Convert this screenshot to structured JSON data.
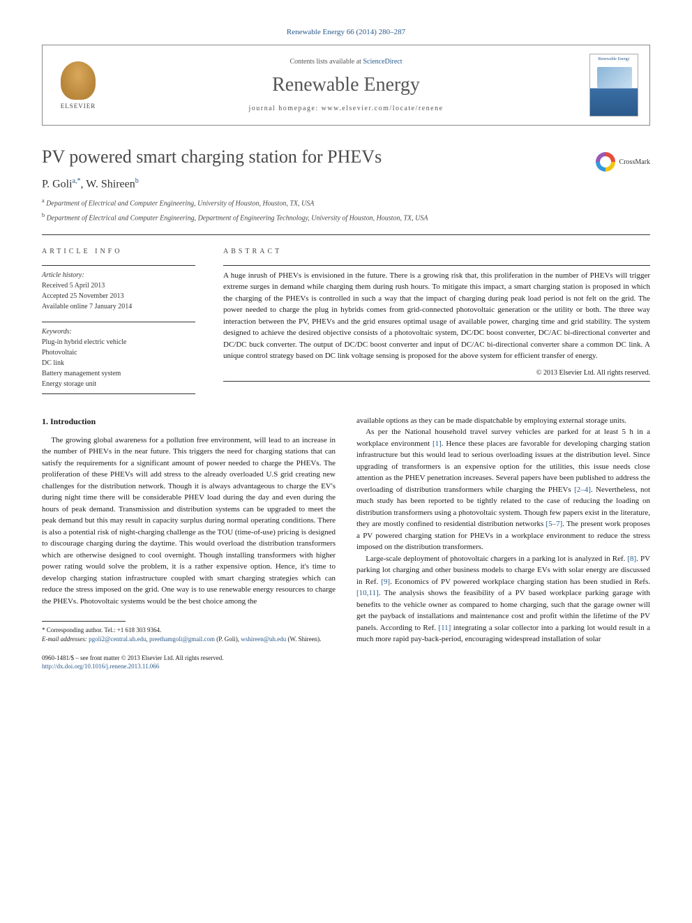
{
  "journal_ref": "Renewable Energy 66 (2014) 280–287",
  "header": {
    "contents_prefix": "Contents lists available at ",
    "contents_link": "ScienceDirect",
    "journal_title": "Renewable Energy",
    "homepage_prefix": "journal homepage: ",
    "homepage_url": "www.elsevier.com/locate/renene",
    "publisher": "ELSEVIER",
    "cover_label": "Renewable Energy"
  },
  "article": {
    "title": "PV powered smart charging station for PHEVs",
    "crossmark": "CrossMark",
    "authors_html": "P. Goli",
    "author1_sup": "a,*",
    "author2": ", W. Shireen",
    "author2_sup": "b",
    "affiliations": [
      {
        "sup": "a",
        "text": "Department of Electrical and Computer Engineering, University of Houston, Houston, TX, USA"
      },
      {
        "sup": "b",
        "text": "Department of Electrical and Computer Engineering, Department of Engineering Technology, University of Houston, Houston, TX, USA"
      }
    ]
  },
  "info": {
    "header": "ARTICLE INFO",
    "history_label": "Article history:",
    "received": "Received 5 April 2013",
    "accepted": "Accepted 25 November 2013",
    "online": "Available online 7 January 2014",
    "keywords_label": "Keywords:",
    "keywords": [
      "Plug-in hybrid electric vehicle",
      "Photovoltaic",
      "DC link",
      "Battery management system",
      "Energy storage unit"
    ]
  },
  "abstract": {
    "header": "ABSTRACT",
    "text": "A huge inrush of PHEVs is envisioned in the future. There is a growing risk that, this proliferation in the number of PHEVs will trigger extreme surges in demand while charging them during rush hours. To mitigate this impact, a smart charging station is proposed in which the charging of the PHEVs is controlled in such a way that the impact of charging during peak load period is not felt on the grid. The power needed to charge the plug in hybrids comes from grid-connected photovoltaic generation or the utility or both. The three way interaction between the PV, PHEVs and the grid ensures optimal usage of available power, charging time and grid stability. The system designed to achieve the desired objective consists of a photovoltaic system, DC/DC boost converter, DC/AC bi-directional converter and DC/DC buck converter. The output of DC/DC boost converter and input of DC/AC bi-directional converter share a common DC link. A unique control strategy based on DC link voltage sensing is proposed for the above system for efficient transfer of energy.",
    "copyright": "© 2013 Elsevier Ltd. All rights reserved."
  },
  "body": {
    "section_heading": "1. Introduction",
    "col1_p1": "The growing global awareness for a pollution free environment, will lead to an increase in the number of PHEVs in the near future. This triggers the need for charging stations that can satisfy the requirements for a significant amount of power needed to charge the PHEVs. The proliferation of these PHEVs will add stress to the already overloaded U.S grid creating new challenges for the distribution network. Though it is always advantageous to charge the EV's during night time there will be considerable PHEV load during the day and even during the hours of peak demand. Transmission and distribution systems can be upgraded to meet the peak demand but this may result in capacity surplus during normal operating conditions. There is also a potential risk of night-charging challenge as the TOU (time-of-use) pricing is designed to discourage charging during the daytime. This would overload the distribution transformers which are otherwise designed to cool overnight. Though installing transformers with higher power rating would solve the problem, it is a rather expensive option. Hence, it's time to develop charging station infrastructure coupled with smart charging strategies which can reduce the stress imposed on the grid. One way is to use renewable energy resources to charge the PHEVs. Photovoltaic systems would be the best choice among the",
    "col2_p1": "available options as they can be made dispatchable by employing external storage units.",
    "col2_p2a": "As per the National household travel survey vehicles are parked for at least 5 h in a workplace environment ",
    "ref1": "[1]",
    "col2_p2b": ". Hence these places are favorable for developing charging station infrastructure but this would lead to serious overloading issues at the distribution level. Since upgrading of transformers is an expensive option for the utilities, this issue needs close attention as the PHEV penetration increases. Several papers have been published to address the overloading of distribution transformers while charging the PHEVs ",
    "ref24": "[2–4]",
    "col2_p2c": ". Nevertheless, not much study has been reported to be tightly related to the case of reducing the loading on distribution transformers using a photovoltaic system. Though few papers exist in the literature, they are mostly confined to residential distribution networks ",
    "ref57": "[5–7]",
    "col2_p2d": ". The present work proposes a PV powered charging station for PHEVs in a workplace environment to reduce the stress imposed on the distribution transformers.",
    "col2_p3a": "Large-scale deployment of photovoltaic chargers in a parking lot is analyzed in Ref. ",
    "ref8": "[8]",
    "col2_p3b": ". PV parking lot charging and other business models to charge EVs with solar energy are discussed in Ref. ",
    "ref9": "[9]",
    "col2_p3c": ". Economics of PV powered workplace charging station has been studied in Refs. ",
    "ref1011": "[10,11]",
    "col2_p3d": ". The analysis shows the feasibility of a PV based workplace parking garage with benefits to the vehicle owner as compared to home charging, such that the garage owner will get the payback of installations and maintenance cost and profit within the lifetime of the PV panels. According to Ref. ",
    "ref11": "[11]",
    "col2_p3e": " integrating a solar collector into a parking lot would result in a much more rapid pay-back-period, encouraging widespread installation of solar"
  },
  "footnotes": {
    "corr": "* Corresponding author. Tel.: +1 618 303 9364.",
    "email_label": "E-mail addresses:",
    "email1": "pgoli2@central.uh.edu",
    "email2": "preethamgoli@gmail.com",
    "email1_who": "(P. Goli),",
    "email3": "wshireen@uh.edu",
    "email3_who": "(W. Shireen)."
  },
  "footer": {
    "issn_line": "0960-1481/$ – see front matter © 2013 Elsevier Ltd. All rights reserved.",
    "doi": "http://dx.doi.org/10.1016/j.renene.2013.11.066"
  },
  "colors": {
    "link": "#2a5a8a",
    "text": "#1a1a1a",
    "rule": "#333333"
  }
}
